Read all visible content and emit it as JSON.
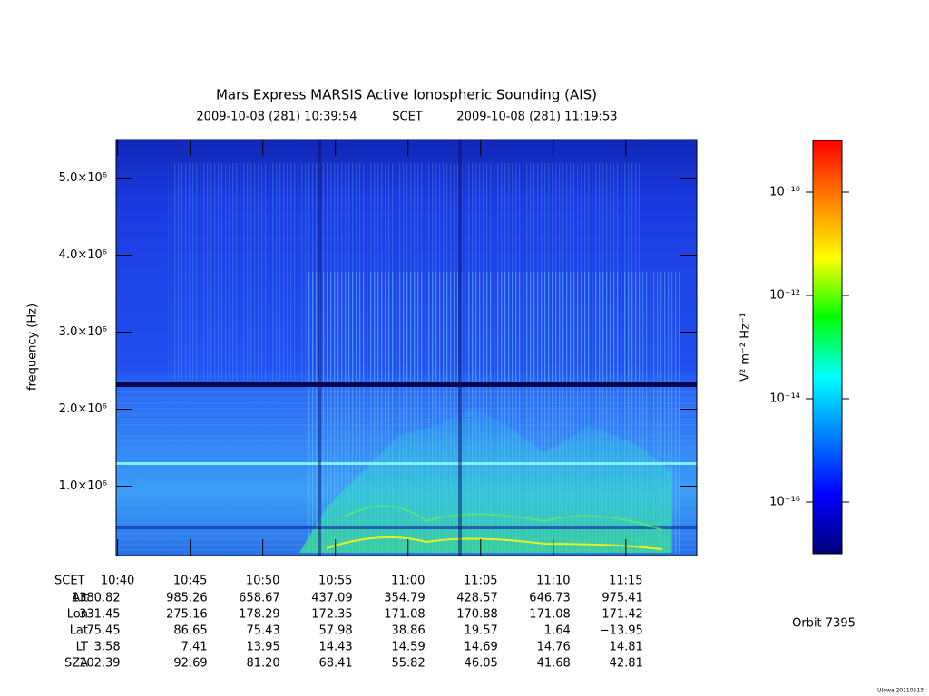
{
  "chart_data": {
    "type": "spectrogram",
    "title": "Mars Express MARSIS Active Ionospheric Sounding (AIS)",
    "time_start": "2009-10-08 (281) 10:39:54",
    "time_label": "SCET",
    "time_end": "2009-10-08 (281) 11:19:53",
    "y_label": "frequency (Hz)",
    "ylim": [
      100000,
      5500000
    ],
    "yticks": [
      {
        "value": 1000000,
        "label": "1.0×10⁶"
      },
      {
        "value": 2000000,
        "label": "2.0×10⁶"
      },
      {
        "value": 3000000,
        "label": "3.0×10⁶"
      },
      {
        "value": 4000000,
        "label": "4.0×10⁶"
      },
      {
        "value": 5000000,
        "label": "5.0×10⁶"
      }
    ],
    "xlim": [
      "10:39:54",
      "11:19:53"
    ],
    "xticks": [
      "10:40",
      "10:45",
      "10:50",
      "10:55",
      "11:00",
      "11:05",
      "11:10",
      "11:15"
    ],
    "x_row_label": "SCET",
    "ephemeris": [
      {
        "label": "Alt",
        "values": [
          "1380.82",
          "985.26",
          "658.67",
          "437.09",
          "354.79",
          "428.57",
          "646.73",
          "975.41"
        ]
      },
      {
        "label": "Lon",
        "values": [
          "331.45",
          "275.16",
          "178.29",
          "172.35",
          "171.08",
          "170.88",
          "171.08",
          "171.42"
        ]
      },
      {
        "label": "Lat",
        "values": [
          "75.45",
          "86.65",
          "75.43",
          "57.98",
          "38.86",
          "19.57",
          "1.64",
          "−13.95"
        ]
      },
      {
        "label": "LT",
        "values": [
          "3.58",
          "7.41",
          "13.95",
          "14.43",
          "14.59",
          "14.69",
          "14.76",
          "14.81"
        ]
      },
      {
        "label": "SZA",
        "values": [
          "102.39",
          "92.69",
          "81.20",
          "68.41",
          "55.82",
          "46.05",
          "41.68",
          "42.81"
        ]
      }
    ],
    "colorbar": {
      "label": "V² m⁻² Hz⁻¹",
      "log": true,
      "lim": [
        1e-17,
        1e-09
      ],
      "ticks": [
        {
          "value": 1e-16,
          "label": "10⁻¹⁶"
        },
        {
          "value": 1e-14,
          "label": "10⁻¹⁴"
        },
        {
          "value": 1e-12,
          "label": "10⁻¹²"
        },
        {
          "value": 1e-10,
          "label": "10⁻¹⁰"
        }
      ],
      "colors": [
        "#00007a",
        "#0000ff",
        "#0080ff",
        "#00ffff",
        "#00ff00",
        "#ffff00",
        "#ff8000",
        "#ff0000"
      ]
    },
    "orbit": "Orbit 7395",
    "footer": "UIowa 20110513"
  }
}
